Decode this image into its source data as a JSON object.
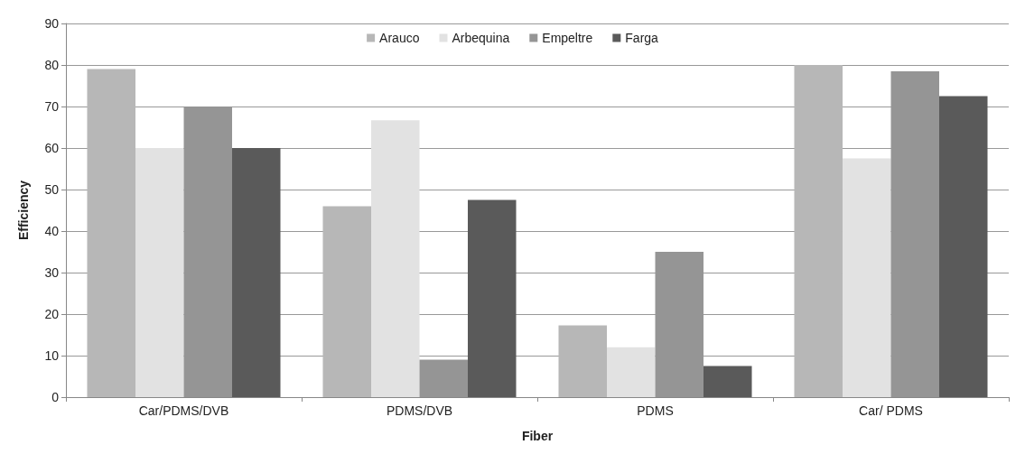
{
  "chart_data": {
    "type": "bar",
    "xlabel": "Fiber",
    "ylabel": "Efficiency",
    "categories": [
      "Car/PDMS/DVB",
      "PDMS/DVB",
      "PDMS",
      "Car/ PDMS"
    ],
    "series": [
      {
        "name": "Arauco",
        "color": "#b7b7b7",
        "values": [
          79,
          46,
          17.3,
          80
        ]
      },
      {
        "name": "Arbequina",
        "color": "#e2e2e2",
        "values": [
          60,
          66.7,
          12,
          57.5
        ]
      },
      {
        "name": "Empeltre",
        "color": "#959595",
        "values": [
          70,
          9,
          35,
          78.5
        ]
      },
      {
        "name": "Farga",
        "color": "#5a5a5a",
        "values": [
          60,
          47.5,
          7.5,
          72.5
        ]
      }
    ],
    "ylim": [
      0,
      90
    ],
    "yticks": [
      0,
      10,
      20,
      30,
      40,
      50,
      60,
      70,
      80,
      90
    ],
    "grid": "y",
    "legend": "top"
  }
}
